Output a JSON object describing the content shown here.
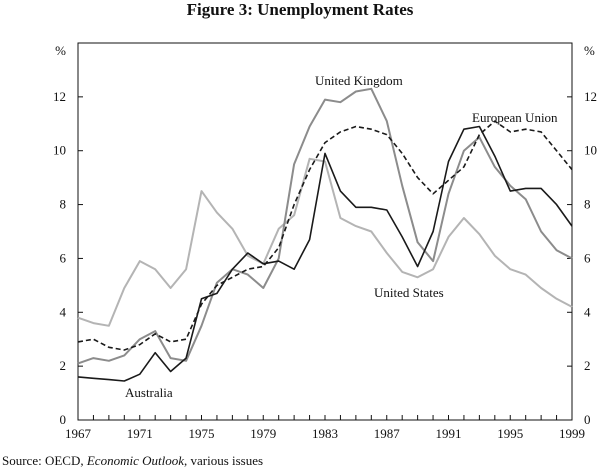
{
  "title": "Figure 3: Unemployment Rates",
  "source": {
    "prefix": "Source: OECD, ",
    "publication": "Economic Outlook",
    "suffix": ", various issues"
  },
  "chart_data": {
    "type": "line",
    "title": "Figure 3: Unemployment Rates",
    "xlabel": "",
    "ylabel": "%",
    "ylabel_right": "%",
    "xlim": [
      1967,
      1999
    ],
    "ylim": [
      0,
      14
    ],
    "x_ticks": [
      1967,
      1971,
      1975,
      1979,
      1983,
      1987,
      1991,
      1995,
      1999
    ],
    "x_tick_labels": [
      "1967",
      "1971",
      "1975",
      "1979",
      "1983",
      "1987",
      "1991",
      "1995",
      "1999"
    ],
    "y_ticks": [
      0,
      2,
      4,
      6,
      8,
      10,
      12
    ],
    "y_tick_labels": [
      "0",
      "2",
      "4",
      "6",
      "8",
      "10",
      "12"
    ],
    "grid": false,
    "x": [
      1967,
      1968,
      1969,
      1970,
      1971,
      1972,
      1973,
      1974,
      1975,
      1976,
      1977,
      1978,
      1979,
      1980,
      1981,
      1982,
      1983,
      1984,
      1985,
      1986,
      1987,
      1988,
      1989,
      1990,
      1991,
      1992,
      1993,
      1994,
      1995,
      1996,
      1997,
      1998,
      1999
    ],
    "series": [
      {
        "name": "Australia",
        "label": "Australia",
        "style": "solid-black",
        "color": "#1a1a1a",
        "values": [
          1.6,
          1.55,
          1.5,
          1.45,
          1.7,
          2.5,
          1.8,
          2.3,
          4.5,
          4.7,
          5.6,
          6.2,
          5.8,
          5.9,
          5.6,
          6.7,
          9.9,
          8.5,
          7.9,
          7.9,
          7.8,
          6.8,
          5.7,
          7.0,
          9.6,
          10.8,
          10.9,
          9.8,
          8.5,
          8.6,
          8.6,
          8.0,
          7.2
        ]
      },
      {
        "name": "European Union",
        "label": "European Union",
        "style": "dashed-black",
        "color": "#1a1a1a",
        "values": [
          2.9,
          3.0,
          2.7,
          2.6,
          2.8,
          3.2,
          2.9,
          3.0,
          4.3,
          5.0,
          5.3,
          5.6,
          5.7,
          6.4,
          8.0,
          9.3,
          10.3,
          10.7,
          10.9,
          10.8,
          10.6,
          9.9,
          9.0,
          8.4,
          8.9,
          9.4,
          10.6,
          11.1,
          10.7,
          10.8,
          10.7,
          10.0,
          9.3
        ]
      },
      {
        "name": "United Kingdom",
        "label": "United Kingdom",
        "style": "solid-grey",
        "color": "#8c8c8c",
        "values": [
          2.1,
          2.3,
          2.2,
          2.4,
          3.0,
          3.3,
          2.3,
          2.2,
          3.5,
          5.1,
          5.6,
          5.4,
          4.9,
          6.0,
          9.5,
          10.9,
          11.9,
          11.8,
          12.2,
          12.3,
          11.1,
          8.7,
          6.6,
          5.9,
          8.4,
          10.0,
          10.5,
          9.4,
          8.7,
          8.2,
          7.0,
          6.3,
          6.0
        ]
      },
      {
        "name": "United States",
        "label": "United States",
        "style": "solid-lightgrey",
        "color": "#b4b4b4",
        "values": [
          3.8,
          3.6,
          3.5,
          4.9,
          5.9,
          5.6,
          4.9,
          5.6,
          8.5,
          7.7,
          7.1,
          6.1,
          5.8,
          7.1,
          7.6,
          9.7,
          9.6,
          7.5,
          7.2,
          7.0,
          6.2,
          5.5,
          5.3,
          5.6,
          6.8,
          7.5,
          6.9,
          6.1,
          5.6,
          5.4,
          4.9,
          4.5,
          4.2
        ]
      }
    ]
  }
}
